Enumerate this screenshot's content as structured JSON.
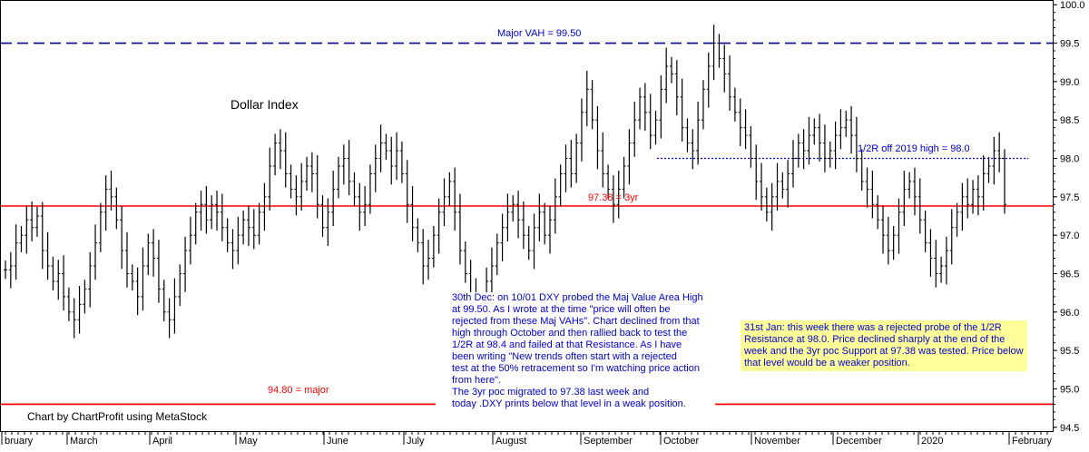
{
  "chart_data": {
    "type": "ohlc",
    "title": "Dollar Index",
    "credit": "Chart by ChartProfit using MetaStock",
    "ylim": [
      94.45,
      100.05
    ],
    "y_ticks": [
      "100.0",
      "99.5",
      "99.0",
      "98.5",
      "98.0",
      "97.5",
      "97.0",
      "96.5",
      "96.0",
      "95.5",
      "95.0",
      "94.5"
    ],
    "x_labels": [
      "bruary",
      "March",
      "April",
      "May",
      "June",
      "July",
      "August",
      "September",
      "October",
      "November",
      "December",
      "2020",
      "February"
    ],
    "horizontal_lines": [
      {
        "label": "Major VAH = 99.50",
        "value": 99.5,
        "style": "dashed",
        "color": "#00008b"
      },
      {
        "label": "1/2R off 2019 high = 98.0",
        "value": 98.0,
        "style": "dotted",
        "color": "#0000cc"
      },
      {
        "label": "97.38 = 3yr",
        "value": 97.38,
        "style": "solid",
        "color": "#ff0000"
      },
      {
        "label": "94.80 = major",
        "value": 94.8,
        "style": "solid",
        "color": "#ff0000"
      }
    ],
    "series": [
      {
        "values": [
          96.55,
          96.6,
          96.9,
          97.0,
          97.2,
          97.1,
          97.25,
          96.8,
          96.6,
          96.4,
          96.5,
          96.2,
          96.0,
          95.9,
          96.1,
          96.3,
          96.6,
          96.9,
          97.3,
          97.6,
          97.5,
          97.2,
          96.8,
          96.5,
          96.4,
          96.2,
          96.6,
          96.9,
          96.7,
          96.3,
          96.0,
          95.9,
          96.2,
          96.5,
          96.8,
          97.0,
          97.3,
          97.4,
          97.2,
          97.4,
          97.3,
          97.1,
          96.9,
          96.8,
          97.0,
          97.2,
          97.1,
          97.0,
          97.3,
          97.5,
          97.9,
          98.2,
          98.1,
          97.8,
          97.6,
          97.5,
          97.7,
          97.9,
          97.8,
          97.4,
          97.1,
          97.3,
          97.6,
          97.9,
          98.0,
          97.7,
          97.5,
          97.3,
          97.4,
          97.8,
          98.0,
          98.2,
          98.1,
          97.9,
          98.1,
          97.8,
          97.4,
          97.1,
          96.9,
          96.6,
          96.7,
          97.0,
          97.3,
          97.5,
          97.7,
          97.3,
          96.8,
          96.5,
          96.2,
          96.0,
          96.1,
          96.4,
          96.6,
          96.9,
          97.1,
          97.3,
          97.4,
          97.2,
          97.0,
          96.8,
          97.1,
          97.3,
          97.0,
          97.2,
          97.5,
          97.8,
          98.0,
          97.8,
          98.2,
          98.6,
          98.9,
          98.5,
          98.1,
          97.8,
          97.6,
          97.4,
          97.6,
          97.9,
          98.2,
          98.5,
          98.8,
          98.6,
          98.3,
          98.5,
          98.9,
          99.2,
          99.1,
          98.8,
          98.4,
          98.2,
          98.1,
          98.5,
          98.9,
          99.2,
          99.5,
          99.3,
          99.1,
          98.8,
          98.6,
          98.4,
          98.3,
          98.0,
          97.7,
          97.5,
          97.3,
          97.5,
          97.7,
          97.6,
          97.8,
          98.0,
          98.2,
          98.1,
          98.3,
          98.4,
          98.2,
          98.0,
          98.1,
          98.3,
          98.4,
          98.5,
          98.3,
          98.0,
          97.7,
          97.6,
          97.4,
          97.2,
          97.0,
          96.8,
          97.0,
          97.3,
          97.6,
          97.7,
          97.5,
          97.2,
          96.9,
          96.7,
          96.5,
          96.6,
          96.8,
          97.1,
          97.3,
          97.5,
          97.4,
          97.6,
          97.5,
          97.8,
          97.9,
          98.1,
          98.0,
          97.4
        ]
      }
    ],
    "notes": {
      "dec_30": [
        "30th Dec: on 10/01 DXY probed the Maj Value Area High",
        "at 99.50. As I wrote at the time \"price will often be",
        "rejected from these Maj VAHs\". Chart declined from that",
        "high through October and then rallied back to test the",
        "1/2R at 98.4 and failed at that Resistance. As I have",
        "been writing \"New trends often start with a rejected",
        "test at the 50% retracement so I'm watching price action",
        "from here\".",
        "The 3yr poc migrated to 97.38 last week and",
        "today .DXY prints below that level in a weak position."
      ],
      "jan_31": [
        "31st Jan: this week there was a rejected probe of the 1/2R",
        "Resistance at 98.0. Price declined sharply at the end of the",
        "week and the 3yr poc Support at 97.38 was tested. Price below",
        "that level would be a weaker position."
      ]
    },
    "colors": {
      "bars": "#000000",
      "vah": "#00008b",
      "half_r": "#0000cc",
      "support": "#ff0000",
      "note_bg": "#ffff99",
      "note_text": "#0000cc"
    }
  }
}
